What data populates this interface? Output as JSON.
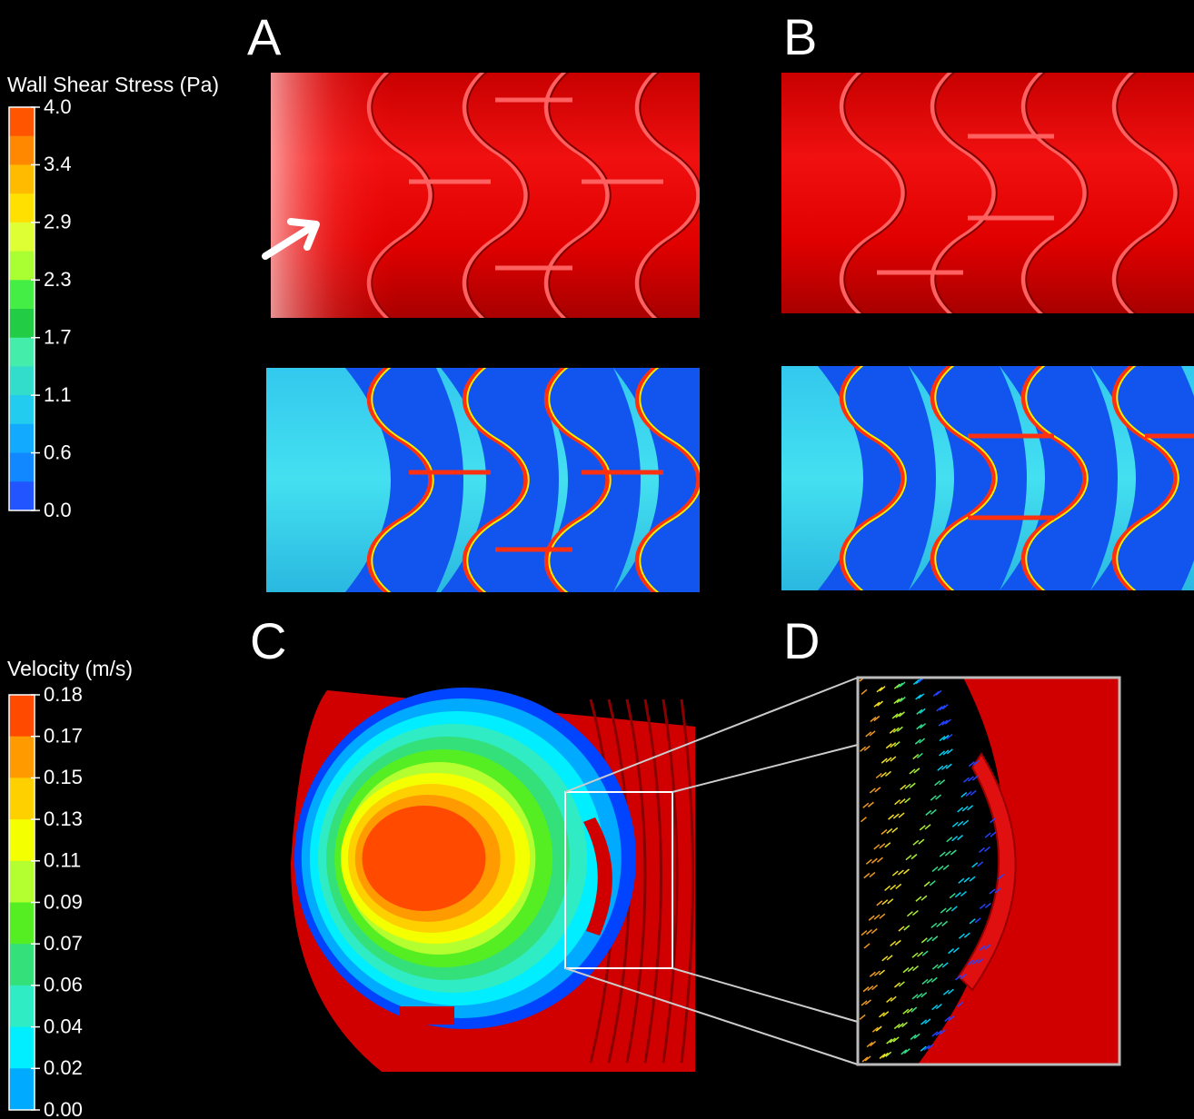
{
  "panels": [
    {
      "label": "A"
    },
    {
      "label": "B"
    },
    {
      "label": "C"
    },
    {
      "label": "D"
    }
  ],
  "legends": [
    {
      "title": "Wall Shear Stress (Pa)",
      "ticks": [
        "4.0",
        "3.4",
        "2.9",
        "2.3",
        "1.7",
        "1.1",
        "0.6",
        "0.0"
      ]
    },
    {
      "title": "Velocity (m/s)",
      "ticks": [
        "0.18",
        "0.17",
        "0.15",
        "0.13",
        "0.11",
        "0.09",
        "0.07",
        "0.06",
        "0.04",
        "0.02",
        "0.00"
      ]
    }
  ]
}
